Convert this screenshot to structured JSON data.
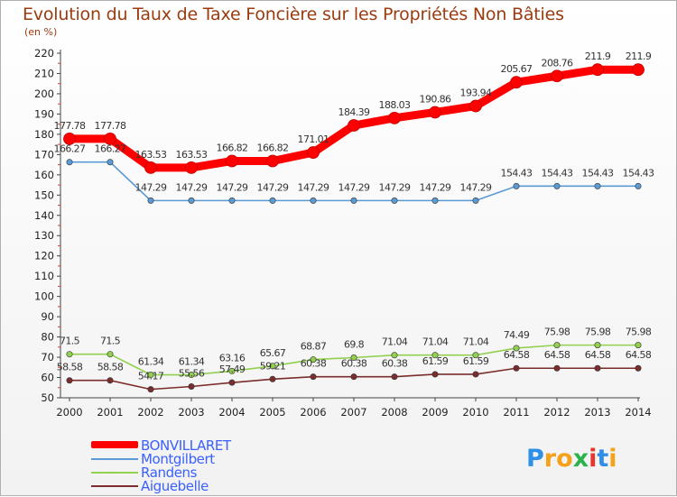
{
  "header": {
    "title": "Evolution du Taux de Taxe Foncière sur les Propriétés Non Bâties",
    "subtitle": "(en %)"
  },
  "chart_data": {
    "type": "line",
    "title": "Evolution du Taux de Taxe Foncière sur les Propriétés Non Bâties",
    "ylabel": "(en %)",
    "xlabel": "",
    "ylim": [
      50,
      220
    ],
    "yticks": [
      50,
      60,
      70,
      80,
      90,
      100,
      110,
      120,
      130,
      140,
      150,
      160,
      170,
      180,
      190,
      200,
      210,
      220
    ],
    "grid": false,
    "legend_position": "bottom-left",
    "x": [
      2000,
      2001,
      2002,
      2003,
      2004,
      2005,
      2006,
      2007,
      2008,
      2009,
      2010,
      2011,
      2012,
      2013,
      2014
    ],
    "series": [
      {
        "name": "BONVILLARET",
        "color": "#ff0000",
        "values": [
          177.78,
          177.78,
          163.53,
          163.53,
          166.82,
          166.82,
          171.01,
          184.39,
          188.03,
          190.86,
          193.94,
          205.67,
          208.76,
          211.9,
          211.9
        ],
        "labels": [
          "177.78",
          "177.78",
          "163.53",
          "163.53",
          "166.82",
          "166.82",
          "171.01",
          "184.39",
          "188.03",
          "190.86",
          "193.94",
          "205.67",
          "208.76",
          "211.9",
          "211.9"
        ]
      },
      {
        "name": "Montgilbert",
        "color": "#5b9bd5",
        "values": [
          166.27,
          166.27,
          147.29,
          147.29,
          147.29,
          147.29,
          147.29,
          147.29,
          147.29,
          147.29,
          147.29,
          154.43,
          154.43,
          154.43,
          154.43
        ],
        "labels": [
          "166.27",
          "166.27",
          "147.29",
          "147.29",
          "147.29",
          "147.29",
          "147.29",
          "147.29",
          "147.29",
          "147.29",
          "147.29",
          "154.43",
          "154.43",
          "154.43",
          "154.43"
        ]
      },
      {
        "name": "Randens",
        "color": "#92d050",
        "values": [
          71.5,
          71.5,
          61.34,
          61.34,
          63.16,
          65.67,
          68.87,
          69.8,
          71.04,
          71.04,
          71.04,
          74.49,
          75.98,
          75.98,
          75.98
        ],
        "labels": [
          "71.5",
          "71.5",
          "61.34",
          "61.34",
          "63.16",
          "65.67",
          "68.87",
          "69.8",
          "71.04",
          "71.04",
          "71.04",
          "74.49",
          "75.98",
          "75.98",
          "75.98"
        ]
      },
      {
        "name": "Aiguebelle",
        "color": "#7b2c2c",
        "values": [
          58.58,
          58.58,
          54.17,
          55.56,
          57.49,
          59.21,
          60.38,
          60.38,
          60.38,
          61.59,
          61.59,
          64.58,
          64.58,
          64.58,
          64.58
        ],
        "labels": [
          "58.58",
          "58.58",
          "54.17",
          "55.56",
          "57.49",
          "59.21",
          "60.38",
          "60.38",
          "60.38",
          "61.59",
          "61.59",
          "64.58",
          "64.58",
          "64.58",
          "64.58"
        ]
      }
    ]
  },
  "logo": {
    "text": "Proxiti",
    "letters": [
      "P",
      "r",
      "o",
      "x",
      "i",
      "t",
      "i"
    ],
    "colors": [
      "#2e8ee8",
      "#f5a11a",
      "#f5a11a",
      "#2ab34a",
      "#e8352e",
      "#2e8ee8",
      "#f5a11a"
    ]
  }
}
